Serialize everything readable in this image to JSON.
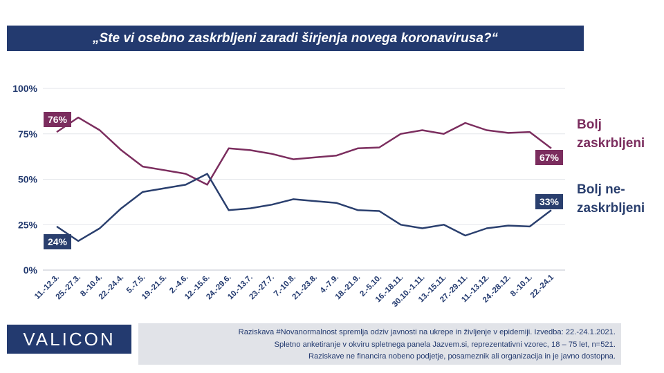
{
  "title": "„Ste vi osebno zaskrbljeni zaradi širjenja novega koronavirusa?“",
  "logo": "VALICON",
  "footnote": [
    "Raziskava #Novanormalnost spremlja  odziv javnosti  na ukrepe in življenje v epidemiji.  Izvedba: 22.-24.1.2021.",
    "Spletno anketiranje v okviru  spletnega panela Jazvem.si, reprezentativni vzorec, 18 – 75 let, n=521.",
    "Raziskave ne financira nobeno podjetje, posameznik ali organizacija in je javno dostopna."
  ],
  "chart_data": {
    "type": "line",
    "categories": [
      "11.-12.3.",
      "25.-27.3.",
      "8.-10.4.",
      "22.-24.4.",
      "5.-7.5.",
      "19.-21.5.",
      "2.-4.6.",
      "12.-15.6.",
      "24.-29.6.",
      "10.-13.7.",
      "23.-27.7.",
      "7.-10.8.",
      "21.-23.8.",
      "4.-7.9.",
      "18.-21.9.",
      "2.-5.10.",
      "16.-18.11.",
      "30.10.-1.11.",
      "13.-15.11.",
      "27.-29.11.",
      "11.-13.12.",
      "24.-28.12.",
      "8.-10.1.",
      "22.-24.1"
    ],
    "series": [
      {
        "name": "Bolj zaskrbljeni",
        "color": "#7b2d5e",
        "values": [
          76,
          84,
          77,
          66,
          57,
          55,
          53,
          47,
          67,
          66,
          64,
          61,
          62,
          63,
          67,
          67.5,
          75,
          77,
          75,
          81,
          77,
          75.5,
          76,
          67
        ],
        "start_label": "76%",
        "end_label": "67%"
      },
      {
        "name": "Bolj ne-zaskrbljeni",
        "color": "#2a3f6e",
        "values": [
          24,
          16,
          23,
          34,
          43,
          45,
          47,
          53,
          33,
          34,
          36,
          39,
          38,
          37,
          33,
          32.5,
          25,
          23,
          25,
          19,
          23,
          24.5,
          24,
          33
        ],
        "start_label": "24%",
        "end_label": "33%"
      }
    ],
    "legend": [
      {
        "lines": [
          "Bolj",
          "zaskrbljeni"
        ],
        "color": "#7b2d5e"
      },
      {
        "lines": [
          "Bolj ne-",
          "zaskrbljeni"
        ],
        "color": "#2a3f6e"
      }
    ],
    "yticks": [
      "0%",
      "25%",
      "50%",
      "75%",
      "100%"
    ],
    "ylim": [
      0,
      100
    ],
    "grid": true
  }
}
